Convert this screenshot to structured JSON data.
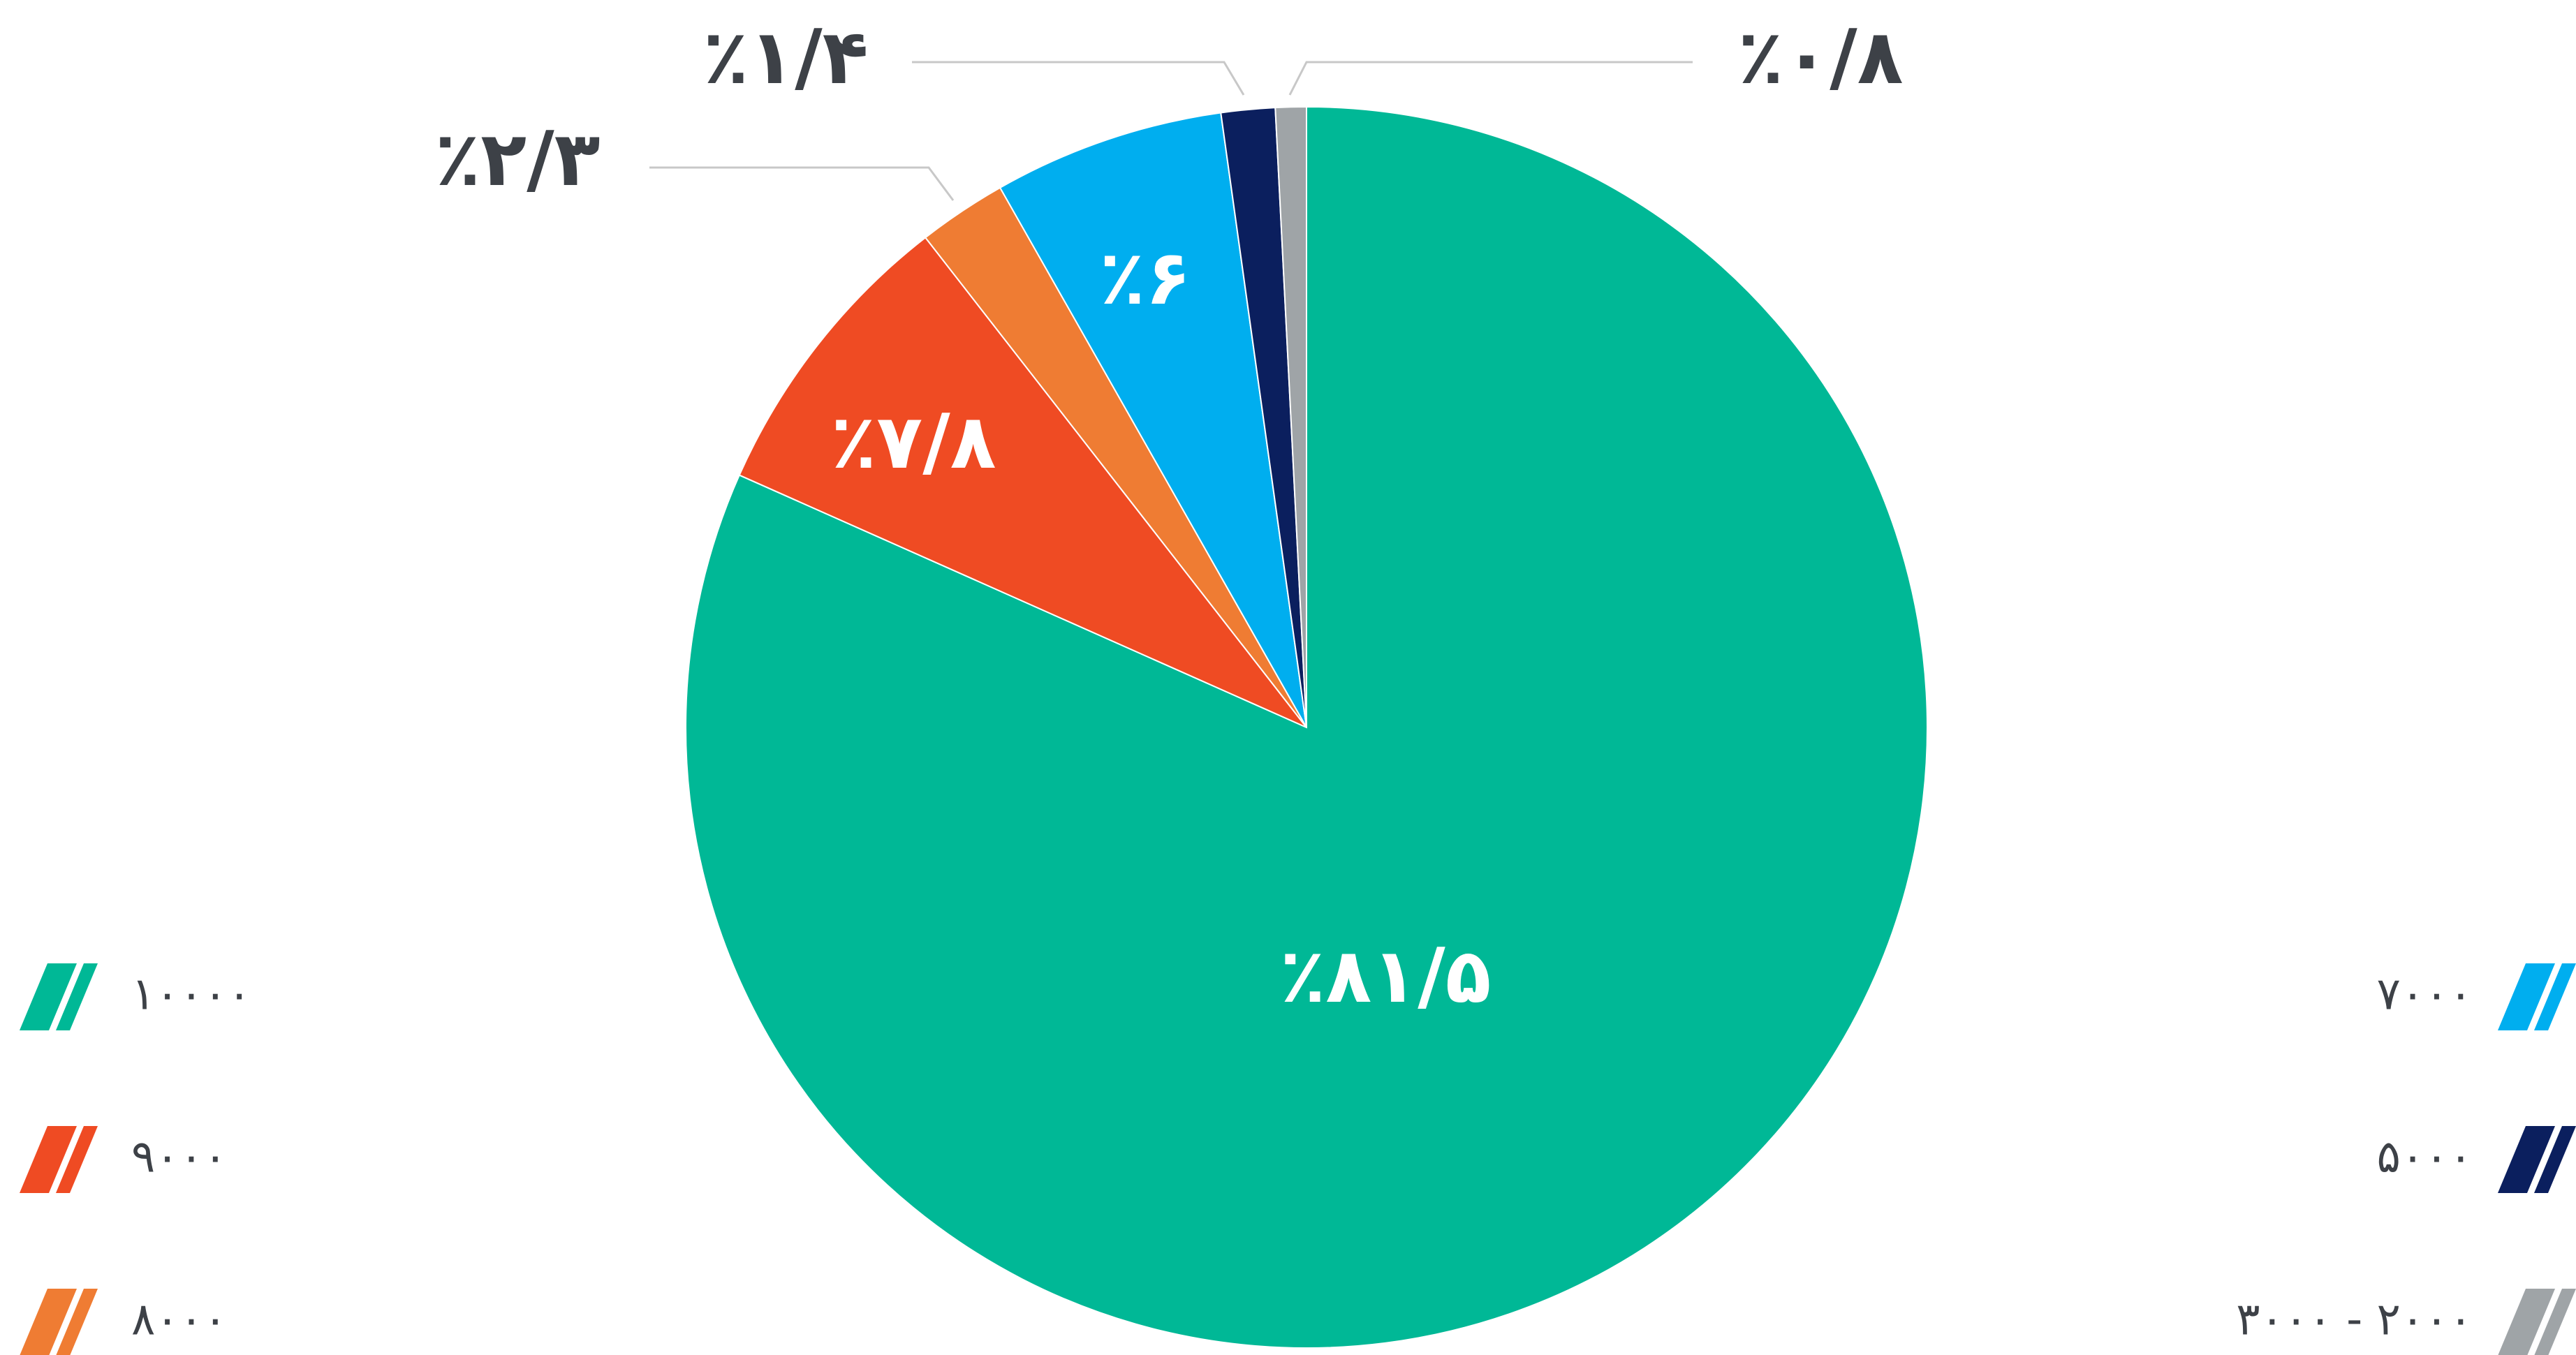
{
  "chart_data": {
    "type": "pie",
    "categories": [
      "۱۰۰۰۰",
      "۹۰۰۰",
      "۸۰۰۰",
      "۷۰۰۰",
      "۵۰۰۰",
      "۳۰۰۰ - ۲۰۰۰"
    ],
    "values": [
      81.5,
      7.8,
      2.3,
      6,
      1.4,
      0.8
    ],
    "value_labels": [
      "٪۸۱/۵",
      "٪۷/۸",
      "٪۲/۳",
      "٪۶",
      "٪۱/۴",
      "٪۰/۸"
    ],
    "colors": [
      "#00b896",
      "#ef4b23",
      "#ef7c33",
      "#00aeef",
      "#0b1f5e",
      "#9fa4a7"
    ],
    "legend": true
  }
}
